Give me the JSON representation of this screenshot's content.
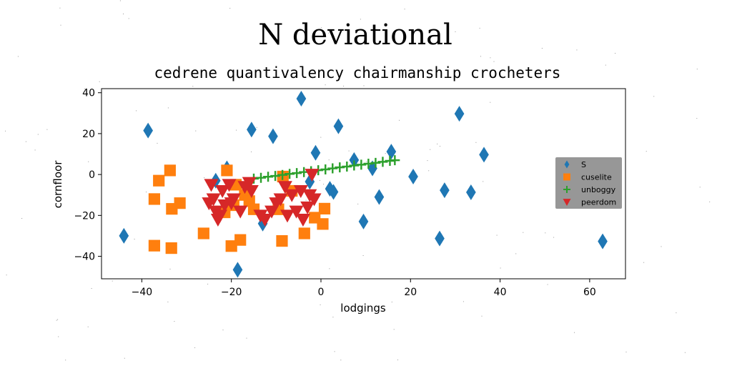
{
  "chart_data": {
    "type": "scatter",
    "title": "N deviational",
    "subtitle": "cedrene quantivalency chairmanship crocheters",
    "xlabel": "lodgings",
    "ylabel": "cornfloor",
    "xlim": [
      -49,
      68
    ],
    "ylim": [
      -51,
      42
    ],
    "xticks": [
      -40,
      -20,
      0,
      20,
      40,
      60
    ],
    "yticks": [
      -40,
      -20,
      0,
      20,
      40
    ],
    "grid": false,
    "legend_position": "right",
    "series": [
      {
        "name": "S",
        "marker": "diamond",
        "color": "#1f77b4",
        "points": [
          [
            -44,
            -30
          ],
          [
            -38.6,
            21.5
          ],
          [
            -18.6,
            -46.6
          ],
          [
            -21,
            3
          ],
          [
            -23.5,
            -3
          ],
          [
            -15.5,
            22
          ],
          [
            -10.7,
            18.7
          ],
          [
            -13,
            -24
          ],
          [
            -4.4,
            37.1
          ],
          [
            -1.2,
            10.6
          ],
          [
            3.9,
            23.6
          ],
          [
            -2.5,
            -3.5
          ],
          [
            2,
            -7
          ],
          [
            2.8,
            -8.5
          ],
          [
            7.4,
            7.1
          ],
          [
            9.5,
            -23
          ],
          [
            11.5,
            3
          ],
          [
            13,
            -11
          ],
          [
            15.7,
            11.2
          ],
          [
            20.6,
            -1
          ],
          [
            26.5,
            -31.3
          ],
          [
            27.6,
            -7.7
          ],
          [
            30.9,
            29.7
          ],
          [
            33.5,
            -8.7
          ],
          [
            36.4,
            9.7
          ],
          [
            62.9,
            -32.7
          ]
        ]
      },
      {
        "name": "cuselite",
        "marker": "square",
        "color": "#ff7f0e",
        "points": [
          [
            -37.2,
            -12
          ],
          [
            -36.2,
            -3
          ],
          [
            -37.2,
            -34.8
          ],
          [
            -33.7,
            2
          ],
          [
            -33.3,
            -16.8
          ],
          [
            -31.5,
            -14
          ],
          [
            -33.4,
            -36
          ],
          [
            -26.2,
            -28.8
          ],
          [
            -21.5,
            -18.5
          ],
          [
            -21,
            2
          ],
          [
            -20,
            -35
          ],
          [
            -18,
            -32
          ],
          [
            -19,
            -5
          ],
          [
            -17,
            -10
          ],
          [
            -16,
            -13
          ],
          [
            -15,
            -17
          ],
          [
            -8.5,
            -1
          ],
          [
            -8.7,
            -32.5
          ],
          [
            -9.5,
            -17
          ],
          [
            -6.5,
            -8
          ],
          [
            -3.7,
            -28.8
          ],
          [
            -1.4,
            -21.1
          ],
          [
            0.4,
            -24.2
          ],
          [
            0.8,
            -16.7
          ],
          [
            -19.5,
            -15
          ]
        ]
      },
      {
        "name": "unboggy",
        "marker": "plus",
        "color": "#2ca02c",
        "points": [
          [
            -15,
            -2
          ],
          [
            -13.4,
            -1.6
          ],
          [
            -11.8,
            -1.1
          ],
          [
            -10.2,
            -0.7
          ],
          [
            -8.6,
            -0.2
          ],
          [
            -7,
            0.3
          ],
          [
            -5.4,
            0.7
          ],
          [
            -3.8,
            1.2
          ],
          [
            -2.2,
            1.6
          ],
          [
            -0.6,
            2.1
          ],
          [
            1,
            2.5
          ],
          [
            2.6,
            3
          ],
          [
            4.2,
            3.5
          ],
          [
            5.8,
            3.9
          ],
          [
            7.4,
            4.4
          ],
          [
            9,
            4.8
          ],
          [
            10.6,
            5.3
          ],
          [
            12.2,
            5.7
          ],
          [
            13.8,
            6.2
          ],
          [
            15.4,
            6.7
          ],
          [
            16.5,
            7
          ]
        ]
      },
      {
        "name": "peerdom",
        "marker": "triangle-down",
        "color": "#d62728",
        "points": [
          [
            -24.5,
            -5
          ],
          [
            -24,
            -12
          ],
          [
            -23.5,
            -18
          ],
          [
            -23,
            -22
          ],
          [
            -22,
            -8
          ],
          [
            -21.5,
            -15
          ],
          [
            -20.5,
            -5
          ],
          [
            -19.5,
            -12
          ],
          [
            -18,
            -18
          ],
          [
            -17,
            -6
          ],
          [
            -16,
            -4
          ],
          [
            -15.5,
            -8
          ],
          [
            -13.5,
            -20
          ],
          [
            -12.5,
            -22
          ],
          [
            -11,
            -18
          ],
          [
            -10,
            -14
          ],
          [
            -9,
            -12
          ],
          [
            -8,
            -6
          ],
          [
            -7.5,
            -20
          ],
          [
            -6.5,
            -10
          ],
          [
            -5.5,
            -18
          ],
          [
            -4.5,
            -8
          ],
          [
            -4,
            -22
          ],
          [
            -3,
            -16
          ],
          [
            -2.5,
            -10
          ],
          [
            -1.5,
            -12
          ],
          [
            -2,
            0
          ],
          [
            -22.5,
            -20
          ],
          [
            -20,
            -14
          ],
          [
            -25,
            -14
          ]
        ]
      }
    ]
  }
}
